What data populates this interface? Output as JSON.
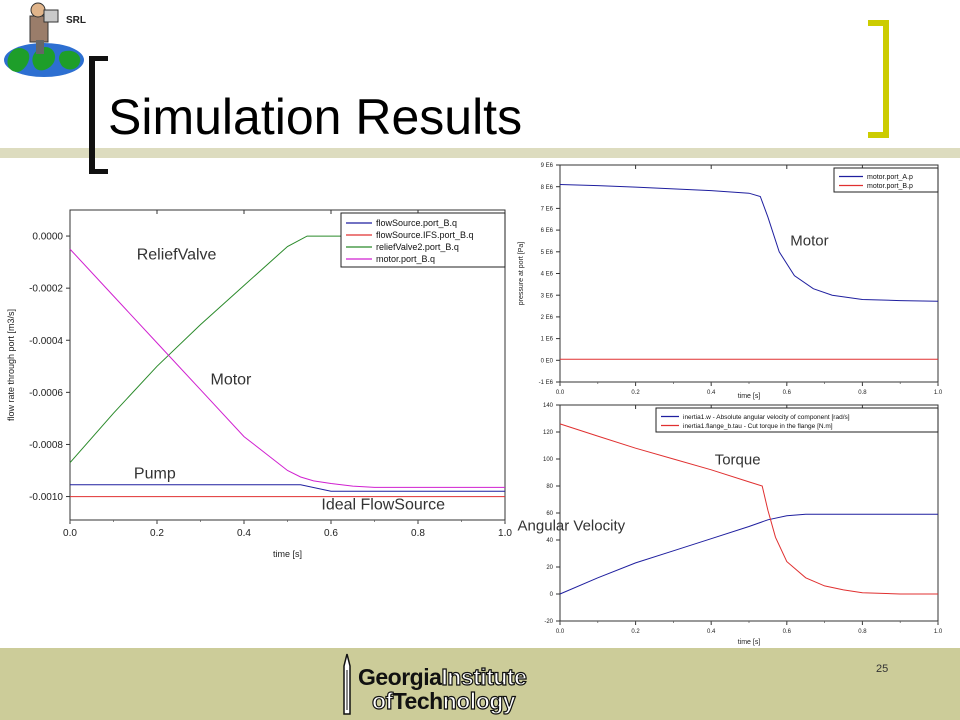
{
  "slide": {
    "title": "Simulation Results",
    "logo_text": "SRL",
    "page_number": "25",
    "footer": {
      "line1_bold": "Georgia",
      "line1_outline": "Institute",
      "line2_outline_a": "of",
      "line2_bold": "Tech",
      "line2_outline_b": "nology"
    },
    "colors": {
      "band": "#cccc99",
      "bracket": "#cccc00",
      "bracket_dark": "#111111"
    }
  },
  "chart_data": [
    {
      "type": "line",
      "name": "flow-chart",
      "xlabel": "time [s]",
      "ylabel": "flow rate through port  [m3/s]",
      "xlim": [
        0,
        1
      ],
      "ylim": [
        -0.00109,
        0.0001
      ],
      "x_ticks": [
        "0.0",
        "0.2",
        "0.4",
        "0.6",
        "0.8",
        "1.0"
      ],
      "y_ticks": [
        "0.0000",
        "-0.0002",
        "-0.0004",
        "-0.0006",
        "-0.0008",
        "-0.0010"
      ],
      "legend_placement": "top-right",
      "series": [
        {
          "name": "flowSource.port_B.q",
          "color": "#1f1f9f",
          "x": [
            0,
            0.53,
            0.6,
            1.0
          ],
          "y": [
            -0.000955,
            -0.000955,
            -0.00098,
            -0.00098
          ]
        },
        {
          "name": "flowSource.IFS.port_B.q",
          "color": "#e03030",
          "x": [
            0,
            1.0
          ],
          "y": [
            -0.001,
            -0.001
          ]
        },
        {
          "name": "reliefValve2.port_B.q",
          "color": "#2a8a2a",
          "x": [
            0,
            0.1,
            0.2,
            0.3,
            0.4,
            0.5,
            0.545,
            0.58,
            0.75
          ],
          "y": [
            -0.00087,
            -0.00068,
            -0.0005,
            -0.00034,
            -0.00019,
            -4e-05,
            0.0,
            0.0,
            0.0
          ]
        },
        {
          "name": "motor.port_B.q",
          "color": "#d020d0",
          "x": [
            0,
            0.1,
            0.2,
            0.3,
            0.4,
            0.5,
            0.53,
            0.56,
            0.6,
            0.65,
            0.7,
            1.0
          ],
          "y": [
            -5e-05,
            -0.00023,
            -0.00041,
            -0.00059,
            -0.00077,
            -0.0009,
            -0.000925,
            -0.00094,
            -0.00095,
            -0.00096,
            -0.000965,
            -0.000965
          ]
        }
      ],
      "annotations": [
        {
          "text": "ReliefValve",
          "x": 0.245,
          "y": -9e-05
        },
        {
          "text": "Motor",
          "x": 0.37,
          "y": -0.00057
        },
        {
          "text": "Pump",
          "x": 0.195,
          "y": -0.00093
        },
        {
          "text": "Ideal FlowSource",
          "x": 0.72,
          "y": -0.00105
        }
      ]
    },
    {
      "type": "line",
      "name": "pressure-chart",
      "xlabel": "time [s]",
      "ylabel": "pressure at port [Pa]",
      "xlim": [
        0,
        1
      ],
      "ylim": [
        -1,
        9
      ],
      "x_ticks": [
        "0.0",
        "0.2",
        "0.4",
        "0.6",
        "0.8",
        "1.0"
      ],
      "y_ticks": [
        "9 E6",
        "8 E6",
        "7 E6",
        "6 E6",
        "5 E6",
        "4 E6",
        "3 E6",
        "2 E6",
        "1 E6",
        "0 E0",
        "-1 E6"
      ],
      "legend_placement": "top-right",
      "series": [
        {
          "name": "motor.port_A.p",
          "color": "#1f1f9f",
          "x": [
            0,
            0.1,
            0.2,
            0.3,
            0.4,
            0.5,
            0.53,
            0.55,
            0.58,
            0.62,
            0.67,
            0.72,
            0.8,
            0.9,
            1.0
          ],
          "y": [
            8.1,
            8.05,
            7.98,
            7.9,
            7.82,
            7.7,
            7.55,
            6.6,
            5.0,
            3.9,
            3.3,
            3.0,
            2.8,
            2.75,
            2.72
          ]
        },
        {
          "name": "motor.port_B.p",
          "color": "#e03030",
          "x": [
            0,
            1.0
          ],
          "y": [
            0.05,
            0.05
          ]
        }
      ],
      "annotations": [
        {
          "text": "Motor",
          "x": 0.66,
          "y": 5.3
        }
      ]
    },
    {
      "type": "line",
      "name": "speed-torque-chart",
      "xlabel": "time [s]",
      "ylabel": "",
      "xlim": [
        0,
        1
      ],
      "ylim": [
        -20,
        140
      ],
      "x_ticks": [
        "0.0",
        "0.2",
        "0.4",
        "0.6",
        "0.8",
        "1.0"
      ],
      "y_ticks": [
        "140",
        "120",
        "100",
        "80",
        "60",
        "40",
        "20",
        "0",
        "-20"
      ],
      "legend_placement": "top",
      "series": [
        {
          "name": "inertia1.w - Absolute angular velocity of component [rad/s]",
          "color": "#1f1f9f",
          "x": [
            0,
            0.1,
            0.2,
            0.3,
            0.4,
            0.5,
            0.55,
            0.6,
            0.65,
            0.7,
            1.0
          ],
          "y": [
            0,
            12,
            23,
            32,
            41,
            50,
            55,
            58,
            59,
            59,
            59
          ]
        },
        {
          "name": "inertia1.flange_b.tau - Cut torque in the flange [N.m]",
          "color": "#e03030",
          "x": [
            0,
            0.1,
            0.2,
            0.3,
            0.4,
            0.5,
            0.535,
            0.55,
            0.57,
            0.6,
            0.65,
            0.7,
            0.75,
            0.8,
            0.9,
            1.0
          ],
          "y": [
            126,
            117,
            108,
            100,
            92,
            83,
            80,
            62,
            42,
            24,
            12,
            6,
            3,
            1,
            0,
            0
          ]
        }
      ],
      "annotations": [
        {
          "text": "Torque",
          "x": 0.47,
          "y": 96
        },
        {
          "text": "Angular Velocity",
          "x": 0.03,
          "y": 47
        }
      ]
    }
  ]
}
